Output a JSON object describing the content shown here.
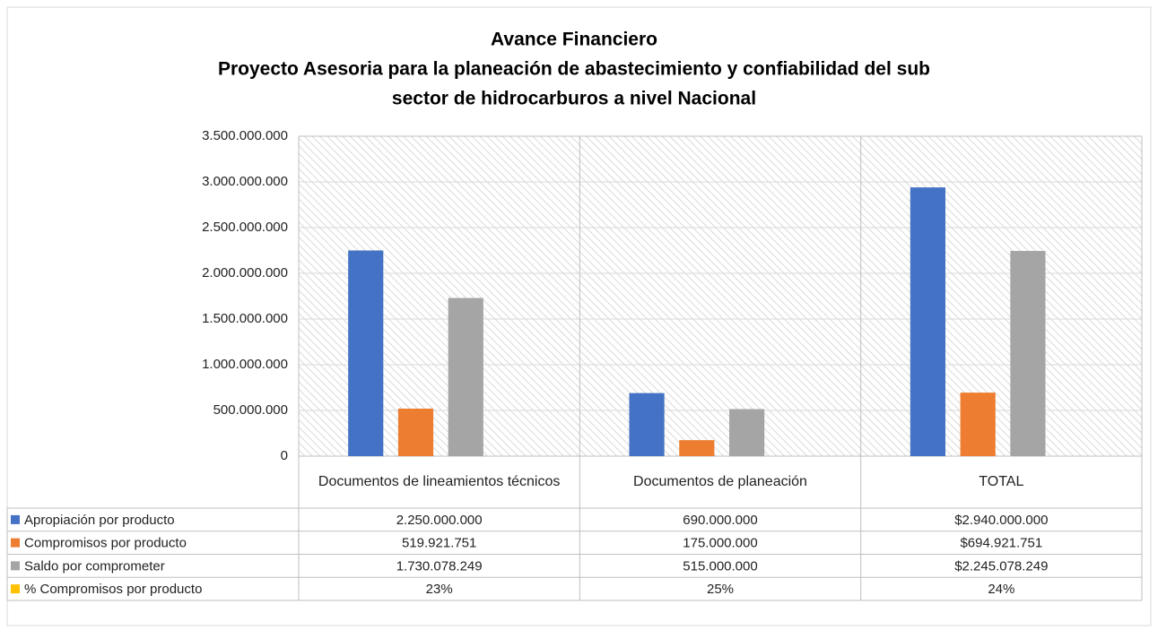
{
  "chart_data": {
    "type": "bar",
    "title": [
      "Avance Financiero",
      "Proyecto Asesoria para la planeación de abastecimiento y confiabilidad del sub",
      "sector de hidrocarburos a nivel  Nacional"
    ],
    "categories": [
      "Documentos de lineamientos técnicos",
      "Documentos de planeación",
      "TOTAL"
    ],
    "series": [
      {
        "name": "Apropiación por producto",
        "color": "#4472c4",
        "values": [
          2250000000,
          690000000,
          2940000000
        ],
        "value_labels": [
          "2.250.000.000",
          "690.000.000",
          "$2.940.000.000"
        ]
      },
      {
        "name": "Compromisos por producto",
        "color": "#ed7d31",
        "values": [
          519921751,
          175000000,
          694921751
        ],
        "value_labels": [
          "519.921.751",
          "175.000.000",
          "$694.921.751"
        ]
      },
      {
        "name": "Saldo por comprometer",
        "color": "#a5a5a5",
        "values": [
          1730078249,
          515000000,
          2245078249
        ],
        "value_labels": [
          "1.730.078.249",
          "515.000.000",
          "$2.245.078.249"
        ]
      },
      {
        "name": "% Compromisos por producto",
        "color": "#ffc000",
        "values": [
          23,
          25,
          24
        ],
        "value_labels": [
          "23%",
          "25%",
          "24%"
        ]
      }
    ],
    "ylim": [
      0,
      3500000000
    ],
    "yticks": [
      0,
      {
        "value": 500000000,
        "label": "500.000.000"
      },
      {
        "value": 1000000000,
        "label": "1.000.000.000"
      },
      {
        "value": 1500000000,
        "label": "1.500.000.000"
      },
      {
        "value": 2000000000,
        "label": "2.000.000.000"
      },
      {
        "value": 2500000000,
        "label": "2.500.000.000"
      },
      {
        "value": 3000000000,
        "label": "3.000.000.000"
      },
      {
        "value": 3500000000,
        "label": "3.500.000.000"
      }
    ],
    "grid": true
  }
}
